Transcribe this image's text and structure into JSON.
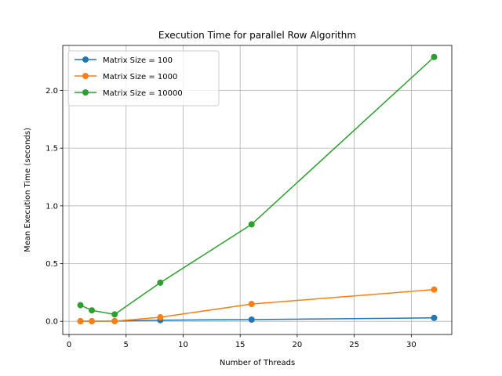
{
  "chart_data": {
    "type": "line",
    "title": "Execution Time for parallel Row Algorithm",
    "xlabel": "Number of Threads",
    "ylabel": "Mean Execution Time (seconds)",
    "xlim": [
      -0.55,
      33.55
    ],
    "ylim": [
      -0.114,
      2.39
    ],
    "xticks": [
      0,
      5,
      10,
      15,
      20,
      25,
      30
    ],
    "yticks": [
      0.0,
      0.5,
      1.0,
      1.5,
      2.0
    ],
    "xtick_labels": [
      "0",
      "5",
      "10",
      "15",
      "20",
      "25",
      "30"
    ],
    "ytick_labels": [
      "0.0",
      "0.5",
      "1.0",
      "1.5",
      "2.0"
    ],
    "grid": true,
    "legend_position": "upper-left",
    "series": [
      {
        "name": "Matrix Size = 100",
        "color": "#1f77b4",
        "x": [
          1,
          2,
          4,
          8,
          16,
          32
        ],
        "y": [
          0.001,
          0.001,
          0.002,
          0.01,
          0.015,
          0.03
        ]
      },
      {
        "name": "Matrix Size = 1000",
        "color": "#ff7f0e",
        "x": [
          1,
          2,
          4,
          8,
          16,
          32
        ],
        "y": [
          0.001,
          0.001,
          0.001,
          0.035,
          0.15,
          0.275
        ]
      },
      {
        "name": "Matrix Size = 10000",
        "color": "#2ca02c",
        "x": [
          1,
          2,
          4,
          8,
          16,
          32
        ],
        "y": [
          0.14,
          0.095,
          0.06,
          0.335,
          0.84,
          2.29
        ]
      }
    ]
  }
}
